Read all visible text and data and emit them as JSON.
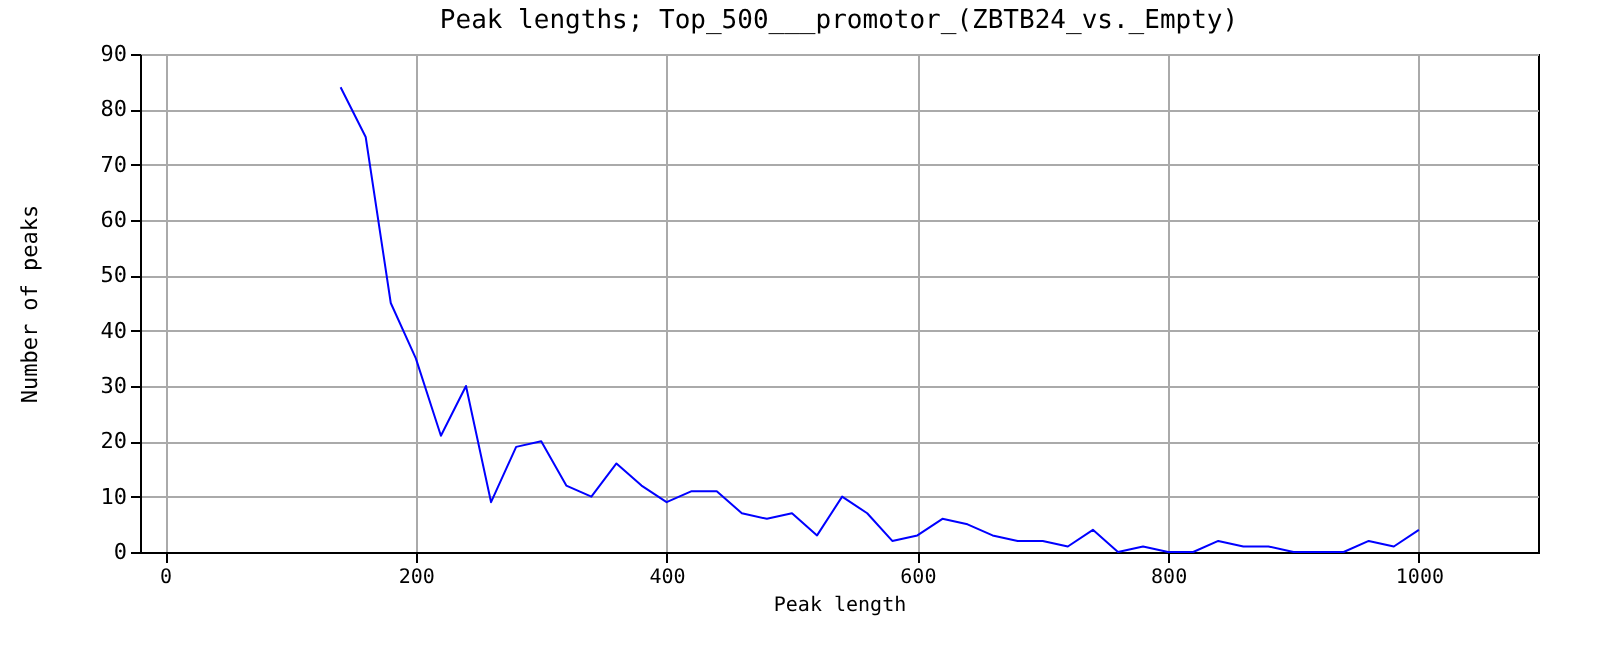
{
  "chart_data": {
    "type": "line",
    "title": "Peak lengths; Top_500___promotor_(ZBTB24_vs._Empty)",
    "xlabel": "Peak length",
    "ylabel": "Number of peaks",
    "x": [
      140,
      160,
      180,
      200,
      220,
      240,
      260,
      280,
      300,
      320,
      340,
      360,
      380,
      400,
      420,
      440,
      460,
      480,
      500,
      520,
      540,
      560,
      580,
      600,
      620,
      640,
      660,
      680,
      700,
      720,
      740,
      760,
      780,
      800,
      820,
      840,
      860,
      880,
      900,
      920,
      940,
      960,
      980,
      1000
    ],
    "series": [
      {
        "color": "#0000ff",
        "values": [
          84,
          75,
          45,
          35,
          21,
          30,
          9,
          19,
          20,
          12,
          10,
          16,
          12,
          9,
          11,
          11,
          7,
          6,
          7,
          3,
          10,
          7,
          2,
          3,
          6,
          5,
          3,
          2,
          2,
          1,
          4,
          0,
          1,
          0,
          0,
          2,
          1,
          1,
          0,
          0,
          0,
          2,
          1,
          4
        ]
      }
    ],
    "xlim": [
      -20,
      1095
    ],
    "ylim": [
      0,
      90
    ],
    "xticks": [
      0,
      200,
      400,
      600,
      800,
      1000
    ],
    "yticks": [
      0,
      10,
      20,
      30,
      40,
      50,
      60,
      70,
      80,
      90
    ],
    "grid": true,
    "marker": "none",
    "line_style": "solid"
  }
}
